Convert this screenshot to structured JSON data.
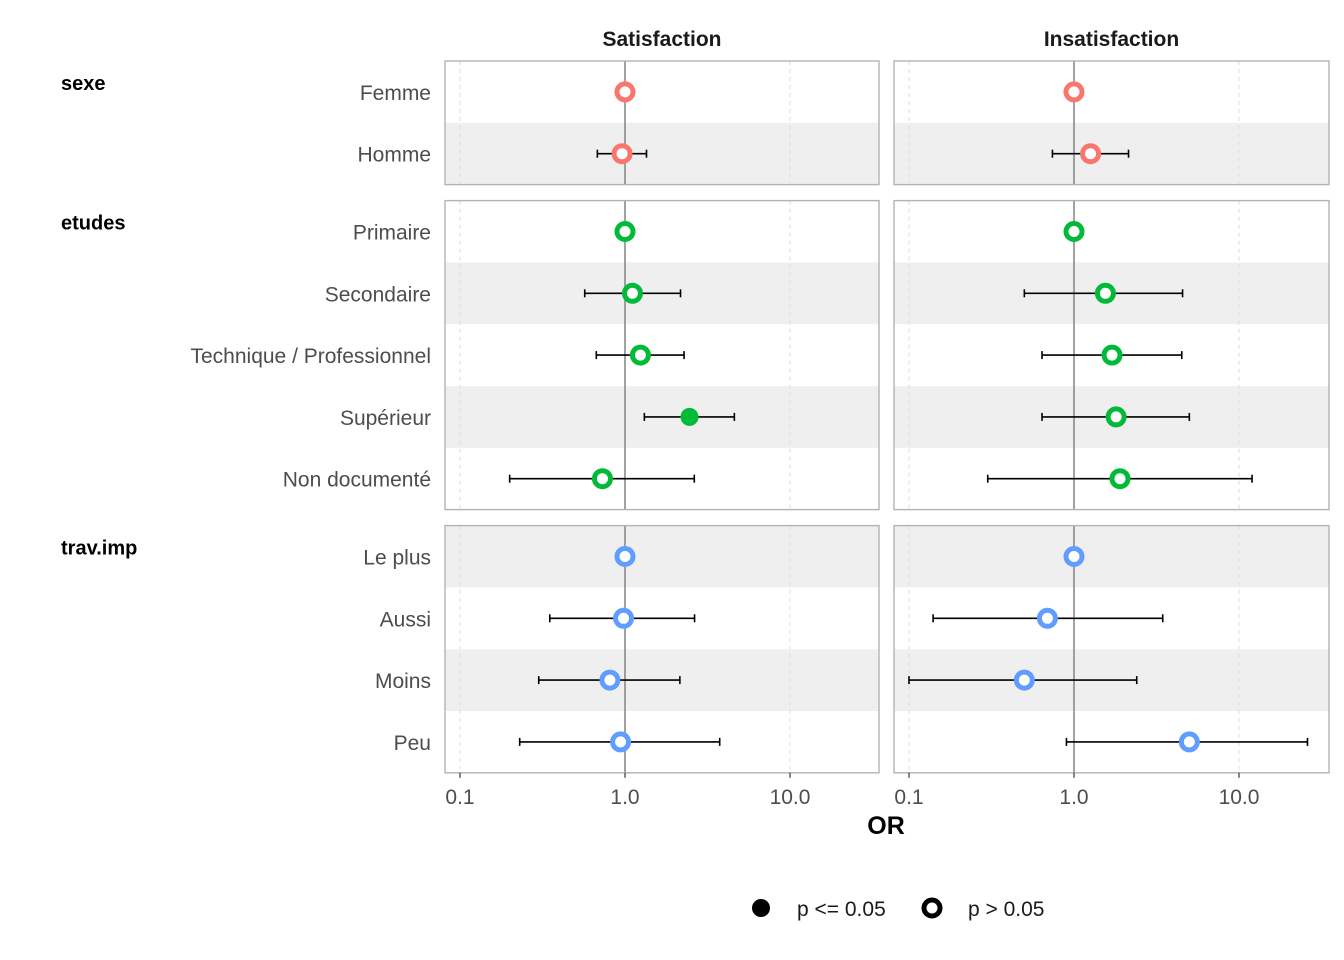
{
  "chart_data": {
    "type": "forest",
    "xlabel": "OR",
    "xscale": "log10",
    "xlim": [
      0.085,
      33
    ],
    "xticks": [
      0.1,
      1.0,
      10.0
    ],
    "xtick_labels": [
      "0.1",
      "1.0",
      "10.0"
    ],
    "reference_line": 1,
    "grid": "vertical-dashed",
    "facets": [
      "Satisfaction",
      "Insatisfaction"
    ],
    "groups": [
      {
        "name": "sexe",
        "color": "#F8766D",
        "levels": [
          {
            "label": "Femme",
            "values": [
              {
                "or": 1.0,
                "low": null,
                "high": null,
                "sig": false
              },
              {
                "or": 1.0,
                "low": null,
                "high": null,
                "sig": false
              }
            ]
          },
          {
            "label": "Homme",
            "values": [
              {
                "or": 0.96,
                "low": 0.68,
                "high": 1.35,
                "sig": false
              },
              {
                "or": 1.26,
                "low": 0.74,
                "high": 2.14,
                "sig": false
              }
            ]
          }
        ]
      },
      {
        "name": "etudes",
        "color": "#00BA38",
        "levels": [
          {
            "label": "Primaire",
            "values": [
              {
                "or": 1.0,
                "low": null,
                "high": null,
                "sig": false
              },
              {
                "or": 1.0,
                "low": null,
                "high": null,
                "sig": false
              }
            ]
          },
          {
            "label": "Secondaire",
            "values": [
              {
                "or": 1.11,
                "low": 0.57,
                "high": 2.17,
                "sig": false
              },
              {
                "or": 1.55,
                "low": 0.5,
                "high": 4.55,
                "sig": false
              }
            ]
          },
          {
            "label": "Technique / Professionnel",
            "values": [
              {
                "or": 1.24,
                "low": 0.67,
                "high": 2.28,
                "sig": false
              },
              {
                "or": 1.7,
                "low": 0.64,
                "high": 4.5,
                "sig": false
              }
            ]
          },
          {
            "label": "Supérieur",
            "values": [
              {
                "or": 2.46,
                "low": 1.31,
                "high": 4.6,
                "sig": true
              },
              {
                "or": 1.8,
                "low": 0.64,
                "high": 5.0,
                "sig": false
              }
            ]
          },
          {
            "label": "Non documenté",
            "values": [
              {
                "or": 0.73,
                "low": 0.2,
                "high": 2.63,
                "sig": false
              },
              {
                "or": 1.9,
                "low": 0.3,
                "high": 12.0,
                "sig": false
              }
            ]
          }
        ]
      },
      {
        "name": "trav.imp",
        "color": "#619CFF",
        "levels": [
          {
            "label": "Le plus",
            "values": [
              {
                "or": 1.0,
                "low": null,
                "high": null,
                "sig": false
              },
              {
                "or": 1.0,
                "low": null,
                "high": null,
                "sig": false
              }
            ]
          },
          {
            "label": "Aussi",
            "values": [
              {
                "or": 0.98,
                "low": 0.35,
                "high": 2.64,
                "sig": false
              },
              {
                "or": 0.69,
                "low": 0.14,
                "high": 3.45,
                "sig": false
              }
            ]
          },
          {
            "label": "Moins",
            "values": [
              {
                "or": 0.81,
                "low": 0.3,
                "high": 2.15,
                "sig": false
              },
              {
                "or": 0.5,
                "low": 0.1,
                "high": 2.4,
                "sig": false
              }
            ]
          },
          {
            "label": "Peu",
            "values": [
              {
                "or": 0.94,
                "low": 0.23,
                "high": 3.75,
                "sig": false
              },
              {
                "or": 5.0,
                "low": 0.9,
                "high": 26.0,
                "sig": false
              }
            ]
          }
        ]
      }
    ],
    "legend": {
      "placement": "bottom",
      "items": [
        {
          "label": "p <= 0.05",
          "shape": "filled-circle"
        },
        {
          "label": "p > 0.05",
          "shape": "hollow-circle"
        }
      ]
    }
  }
}
